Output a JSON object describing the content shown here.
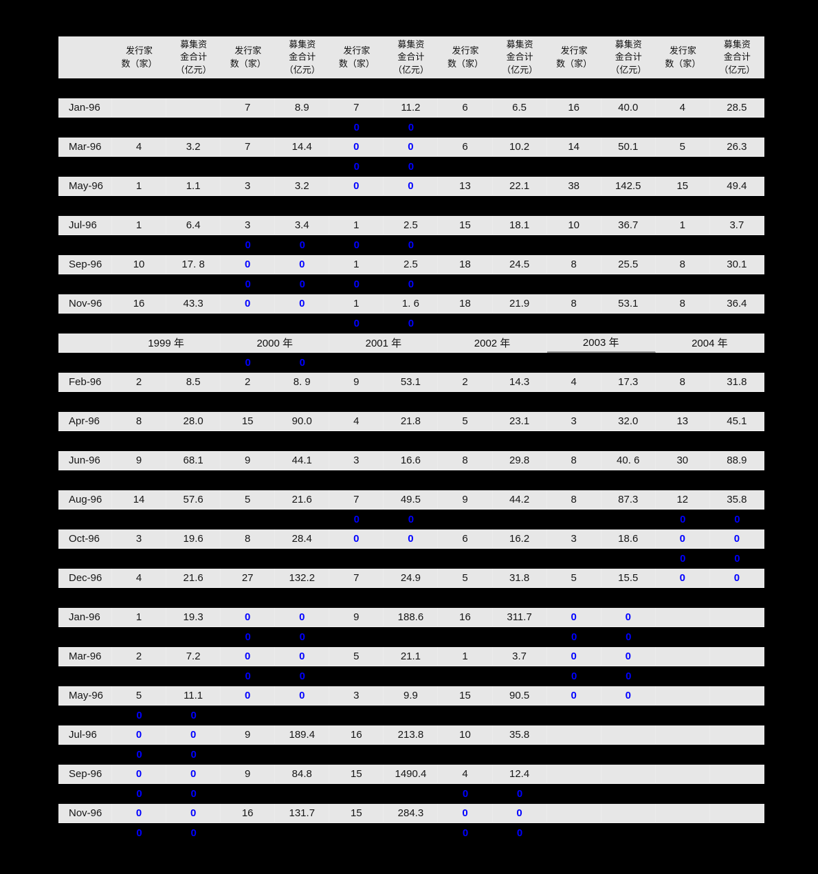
{
  "colors": {
    "page_bg": "#000000",
    "row_bg": "#e7e7e7",
    "text": "#161616",
    "zero_blue": "#0000ff"
  },
  "table": {
    "header_labels": [
      "发行家\n数（家）",
      "募集资\n金合计\n（亿元）",
      "发行家\n数（家）",
      "募集资\n金合计\n（亿元）",
      "发行家\n数（家）",
      "募集资\n金合计\n（亿元）",
      "发行家\n数（家）",
      "募集资\n金合计\n（亿元）",
      "发行家\n数（家）",
      "募集资\n金合计\n（亿元）",
      "发行家\n数（家）",
      "募集资\n金合计\n（亿元）"
    ],
    "year_row": [
      "1999 年",
      "2000 年",
      "2001 年",
      "2002 年",
      "2003 年",
      "2004 年"
    ],
    "gap_zero": "0",
    "rows": [
      {
        "kind": "spacer",
        "zeros": []
      },
      {
        "kind": "data",
        "label": "Jan-96",
        "values": [
          "",
          "",
          "7",
          "8.9",
          "7",
          "11.2",
          "6",
          "6.5",
          "16",
          "40.0",
          "4",
          "28.5"
        ],
        "blue": []
      },
      {
        "kind": "spacer",
        "zeros": [
          5,
          6
        ]
      },
      {
        "kind": "data",
        "label": "Mar-96",
        "values": [
          "4",
          "3.2",
          "7",
          "14.4",
          "0",
          "0",
          "6",
          "10.2",
          "14",
          "50.1",
          "5",
          "26.3"
        ],
        "blue": [
          5,
          6
        ]
      },
      {
        "kind": "spacer",
        "zeros": [
          5,
          6
        ]
      },
      {
        "kind": "data",
        "label": "May-96",
        "values": [
          "1",
          "1.1",
          "3",
          "3.2",
          "0",
          "0",
          "13",
          "22.1",
          "38",
          "142.5",
          "15",
          "49.4"
        ],
        "blue": [
          5,
          6
        ]
      },
      {
        "kind": "spacer",
        "zeros": []
      },
      {
        "kind": "data",
        "label": "Jul-96",
        "values": [
          "1",
          "6.4",
          "3",
          "3.4",
          "1",
          "2.5",
          "15",
          "18.1",
          "10",
          "36.7",
          "1",
          "3.7"
        ],
        "blue": []
      },
      {
        "kind": "spacer",
        "zeros": [
          3,
          4,
          5,
          6
        ]
      },
      {
        "kind": "data",
        "label": "Sep-96",
        "values": [
          "10",
          "17. 8",
          "0",
          "0",
          "1",
          "2.5",
          "18",
          "24.5",
          "8",
          "25.5",
          "8",
          "30.1"
        ],
        "blue": [
          3,
          4
        ]
      },
      {
        "kind": "spacer",
        "zeros": [
          3,
          4,
          5,
          6
        ]
      },
      {
        "kind": "data",
        "label": "Nov-96",
        "values": [
          "16",
          "43.3",
          "0",
          "0",
          "1",
          "1. 6",
          "18",
          "21.9",
          "8",
          "53.1",
          "8",
          "36.4"
        ],
        "blue": [
          3,
          4
        ]
      },
      {
        "kind": "spacer",
        "zeros": [
          5,
          6
        ]
      },
      {
        "kind": "year"
      },
      {
        "kind": "spacer",
        "zeros": [
          3,
          4
        ]
      },
      {
        "kind": "data",
        "label": "Feb-96",
        "values": [
          "2",
          "8.5",
          "2",
          "8. 9",
          "9",
          "53.1",
          "2",
          "14.3",
          "4",
          "17.3",
          "8",
          "31.8"
        ],
        "blue": []
      },
      {
        "kind": "spacer",
        "zeros": []
      },
      {
        "kind": "data",
        "label": "Apr-96",
        "values": [
          "8",
          "28.0",
          "15",
          "90.0",
          "4",
          "21.8",
          "5",
          "23.1",
          "3",
          "32.0",
          "13",
          "45.1"
        ],
        "blue": []
      },
      {
        "kind": "spacer",
        "zeros": []
      },
      {
        "kind": "data",
        "label": "Jun-96",
        "values": [
          "9",
          "68.1",
          "9",
          "44.1",
          "3",
          "16.6",
          "8",
          "29.8",
          "8",
          "40. 6",
          "30",
          "88.9"
        ],
        "blue": []
      },
      {
        "kind": "spacer",
        "zeros": []
      },
      {
        "kind": "data",
        "label": "Aug-96",
        "values": [
          "14",
          "57.6",
          "5",
          "21.6",
          "7",
          "49.5",
          "9",
          "44.2",
          "8",
          "87.3",
          "12",
          "35.8"
        ],
        "blue": []
      },
      {
        "kind": "spacer",
        "zeros": [
          5,
          6,
          11,
          12
        ]
      },
      {
        "kind": "data",
        "label": "Oct-96",
        "values": [
          "3",
          "19.6",
          "8",
          "28.4",
          "0",
          "0",
          "6",
          "16.2",
          "3",
          "18.6",
          "0",
          "0"
        ],
        "blue": [
          5,
          6,
          11,
          12
        ]
      },
      {
        "kind": "spacer",
        "zeros": [
          11,
          12
        ]
      },
      {
        "kind": "data",
        "label": "Dec-96",
        "values": [
          "4",
          "21.6",
          "27",
          "132.2",
          "7",
          "24.9",
          "5",
          "31.8",
          "5",
          "15.5",
          "0",
          "0"
        ],
        "blue": [
          11,
          12
        ]
      },
      {
        "kind": "spacer",
        "zeros": []
      },
      {
        "kind": "data",
        "label": "Jan-96",
        "values": [
          "1",
          "19.3",
          "0",
          "0",
          "9",
          "188.6",
          "16",
          "311.7",
          "0",
          "0",
          "",
          ""
        ],
        "blue": [
          3,
          4,
          9,
          10
        ]
      },
      {
        "kind": "spacer",
        "zeros": [
          3,
          4,
          9,
          10
        ]
      },
      {
        "kind": "data",
        "label": "Mar-96",
        "values": [
          "2",
          "7.2",
          "0",
          "0",
          "5",
          "21.1",
          "1",
          "3.7",
          "0",
          "0",
          "",
          ""
        ],
        "blue": [
          3,
          4,
          9,
          10
        ]
      },
      {
        "kind": "spacer",
        "zeros": [
          3,
          4,
          9,
          10
        ]
      },
      {
        "kind": "data",
        "label": "May-96",
        "values": [
          "5",
          "11.1",
          "0",
          "0",
          "3",
          "9.9",
          "15",
          "90.5",
          "0",
          "0",
          "",
          ""
        ],
        "blue": [
          3,
          4,
          9,
          10
        ]
      },
      {
        "kind": "spacer",
        "zeros": [
          1,
          2
        ]
      },
      {
        "kind": "data",
        "label": "Jul-96",
        "values": [
          "0",
          "0",
          "9",
          "189.4",
          "16",
          "213.8",
          "10",
          "35.8",
          "",
          "",
          "",
          ""
        ],
        "blue": [
          1,
          2
        ]
      },
      {
        "kind": "spacer",
        "zeros": [
          1,
          2
        ]
      },
      {
        "kind": "data",
        "label": "Sep-96",
        "values": [
          "0",
          "0",
          "9",
          "84.8",
          "15",
          "1490.4",
          "4",
          "12.4",
          "",
          "",
          "",
          ""
        ],
        "blue": [
          1,
          2
        ]
      },
      {
        "kind": "spacer",
        "zeros": [
          1,
          2,
          7,
          8
        ]
      },
      {
        "kind": "data",
        "label": "Nov-96",
        "values": [
          "0",
          "0",
          "16",
          "131.7",
          "15",
          "284.3",
          "0",
          "0",
          "",
          "",
          "",
          ""
        ],
        "blue": [
          1,
          2,
          7,
          8
        ]
      },
      {
        "kind": "spacer",
        "zeros": [
          1,
          2,
          7,
          8
        ]
      }
    ]
  }
}
